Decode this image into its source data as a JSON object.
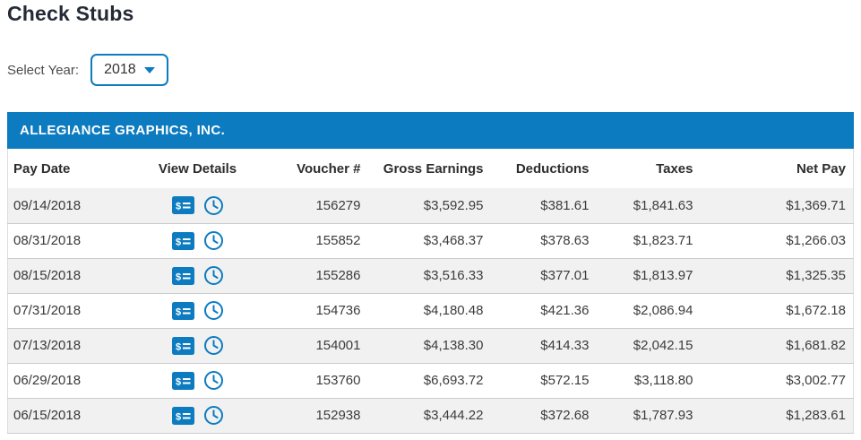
{
  "page": {
    "title": "Check Stubs"
  },
  "year_filter": {
    "label": "Select Year:",
    "selected_year": "2018"
  },
  "table": {
    "company": "ALLEGIANCE GRAPHICS, INC.",
    "columns": [
      "Pay Date",
      "View Details",
      "Voucher #",
      "Gross Earnings",
      "Deductions",
      "Taxes",
      "Net Pay"
    ],
    "view_details_icons": [
      "money-check-icon",
      "clock-icon"
    ],
    "rows": [
      {
        "pay_date": "09/14/2018",
        "voucher": "156279",
        "gross_earnings": "$3,592.95",
        "deductions": "$381.61",
        "taxes": "$1,841.63",
        "net_pay": "$1,369.71"
      },
      {
        "pay_date": "08/31/2018",
        "voucher": "155852",
        "gross_earnings": "$3,468.37",
        "deductions": "$378.63",
        "taxes": "$1,823.71",
        "net_pay": "$1,266.03"
      },
      {
        "pay_date": "08/15/2018",
        "voucher": "155286",
        "gross_earnings": "$3,516.33",
        "deductions": "$377.01",
        "taxes": "$1,813.97",
        "net_pay": "$1,325.35"
      },
      {
        "pay_date": "07/31/2018",
        "voucher": "154736",
        "gross_earnings": "$4,180.48",
        "deductions": "$421.36",
        "taxes": "$2,086.94",
        "net_pay": "$1,672.18"
      },
      {
        "pay_date": "07/13/2018",
        "voucher": "154001",
        "gross_earnings": "$4,138.30",
        "deductions": "$414.33",
        "taxes": "$2,042.15",
        "net_pay": "$1,681.82"
      },
      {
        "pay_date": "06/29/2018",
        "voucher": "153760",
        "gross_earnings": "$6,693.72",
        "deductions": "$572.15",
        "taxes": "$3,118.80",
        "net_pay": "$3,002.77"
      },
      {
        "pay_date": "06/15/2018",
        "voucher": "152938",
        "gross_earnings": "$3,444.22",
        "deductions": "$372.68",
        "taxes": "$1,787.93",
        "net_pay": "$1,283.61"
      }
    ]
  },
  "colors": {
    "accent_blue": "#0c7bc0",
    "row_alt_grey": "#f1f1f1",
    "row_border": "#cbcbcb"
  }
}
